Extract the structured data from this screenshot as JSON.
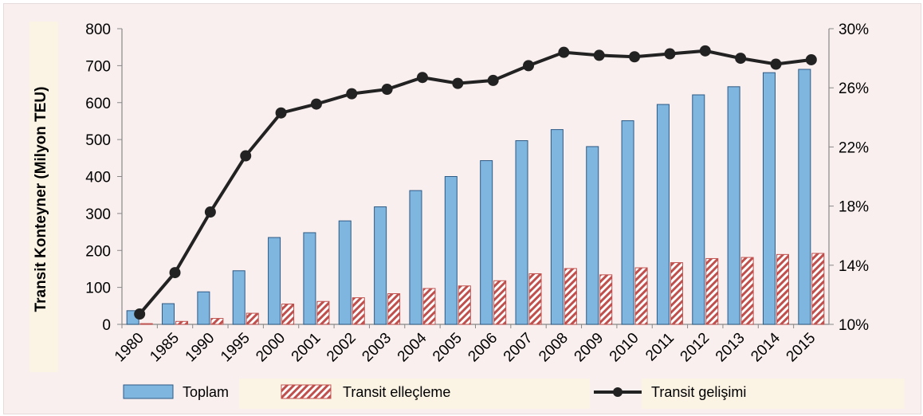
{
  "chart_data": {
    "type": "bar",
    "categories": [
      "1980",
      "1985",
      "1990",
      "1995",
      "2000",
      "2001",
      "2002",
      "2003",
      "2004",
      "2005",
      "2006",
      "2007",
      "2008",
      "2009",
      "2010",
      "2011",
      "2012",
      "2013",
      "2014",
      "2015"
    ],
    "series": [
      {
        "name": "Toplam",
        "type": "bar",
        "axis": "left",
        "color": "#7fb6e0",
        "values": [
          37,
          56,
          88,
          145,
          235,
          248,
          280,
          318,
          362,
          400,
          443,
          497,
          527,
          481,
          551,
          595,
          621,
          643,
          681,
          690
        ]
      },
      {
        "name": "Transit elleçleme",
        "type": "bar-hatched",
        "axis": "left",
        "color": "#c0504d",
        "values": [
          2,
          8,
          16,
          30,
          55,
          62,
          72,
          83,
          97,
          104,
          118,
          137,
          151,
          134,
          153,
          167,
          178,
          181,
          189,
          192
        ]
      },
      {
        "name": "Transit gelişimi",
        "type": "line",
        "axis": "right",
        "color": "#222222",
        "values": [
          10.7,
          13.5,
          17.6,
          21.4,
          24.3,
          24.9,
          25.6,
          25.9,
          26.7,
          26.3,
          26.5,
          27.5,
          28.4,
          28.2,
          28.1,
          28.3,
          28.5,
          28.0,
          27.6,
          27.9
        ]
      }
    ],
    "ylabel": "Transit Konteyner (Milyon TEU)",
    "ylim": [
      0,
      800
    ],
    "yticks": [
      "0",
      "100",
      "200",
      "300",
      "400",
      "500",
      "600",
      "700",
      "800"
    ],
    "y2lim": [
      10,
      30
    ],
    "y2ticks": [
      "10%",
      "14%",
      "18%",
      "22%",
      "26%",
      "30%"
    ],
    "legend_position": "bottom",
    "grid": false
  }
}
